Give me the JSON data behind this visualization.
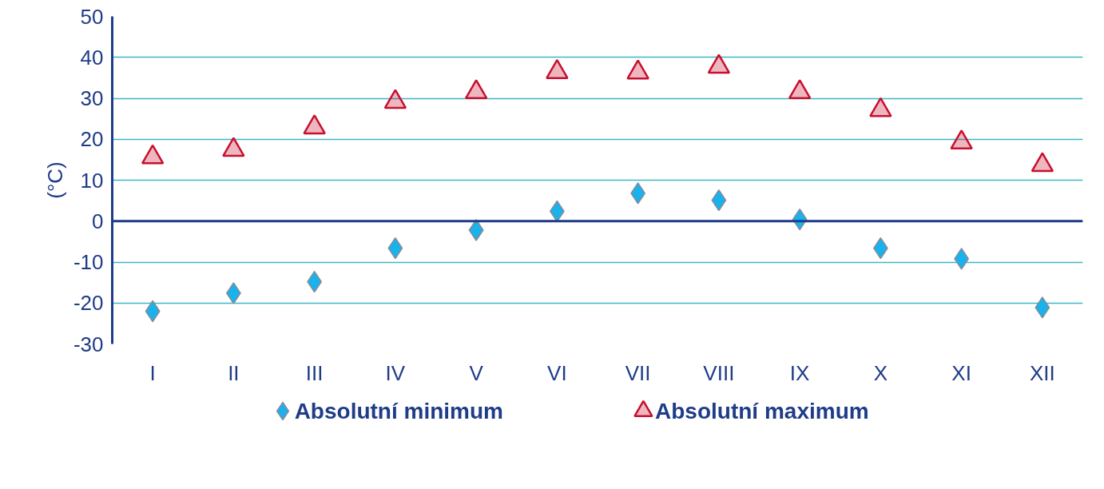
{
  "chart_data": {
    "type": "scatter",
    "ylabel": "(°C)",
    "categories": [
      "I",
      "II",
      "III",
      "IV",
      "V",
      "VI",
      "VII",
      "VIII",
      "IX",
      "X",
      "XI",
      "XII"
    ],
    "series": [
      {
        "name": "Absolutní minimum",
        "color": "#19b2ea",
        "marker": "diamond",
        "values": [
          -22.0,
          -17.6,
          -14.8,
          -6.6,
          -2.2,
          2.4,
          6.8,
          5.1,
          0.4,
          -6.6,
          -9.2,
          -21.1
        ]
      },
      {
        "name": "Absolutní maximum",
        "color": "#c8102e",
        "marker": "triangle",
        "values": [
          15.6,
          17.4,
          22.9,
          29.1,
          31.5,
          36.4,
          36.3,
          37.7,
          31.5,
          27.1,
          19.2,
          13.7
        ]
      }
    ],
    "ylim": [
      -30,
      50
    ],
    "yticks": [
      -30,
      -20,
      -10,
      0,
      10,
      20,
      30,
      40,
      50
    ],
    "ref_lines": [
      {
        "axis": "y",
        "value": 0,
        "color": "#1f3c88"
      }
    ],
    "grid": "y",
    "legend": "bottom"
  }
}
